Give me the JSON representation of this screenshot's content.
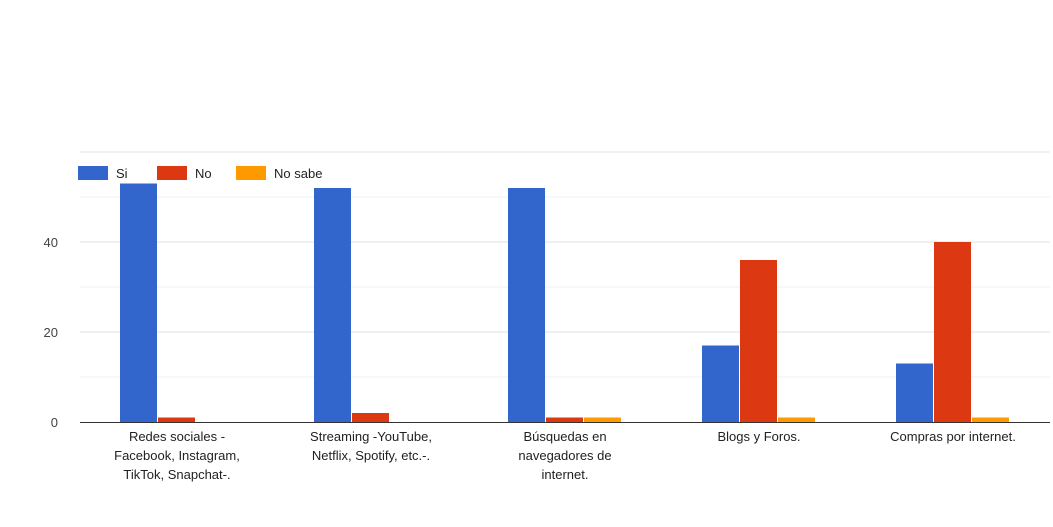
{
  "chart_data": {
    "type": "bar",
    "categories": [
      [
        "Redes sociales -",
        "Facebook, Instagram,",
        "TikTok, Snapchat-."
      ],
      [
        "Streaming -YouTube,",
        "Netflix, Spotify, etc.-."
      ],
      [
        "Búsquedas en",
        "navegadores de",
        "internet."
      ],
      [
        "Blogs y Foros."
      ],
      [
        "Compras por internet."
      ]
    ],
    "series": [
      {
        "name": "Si",
        "color": "#3366cc",
        "values": [
          53,
          52,
          52,
          17,
          13
        ]
      },
      {
        "name": "No",
        "color": "#dc3912",
        "values": [
          1,
          2,
          1,
          36,
          40
        ]
      },
      {
        "name": "No sabe",
        "color": "#ff9900",
        "values": [
          0,
          0,
          1,
          1,
          1
        ]
      }
    ],
    "yticks": [
      "0",
      "20",
      "40"
    ],
    "ylim": [
      0,
      60
    ],
    "grid": true,
    "legend": "top-left"
  }
}
